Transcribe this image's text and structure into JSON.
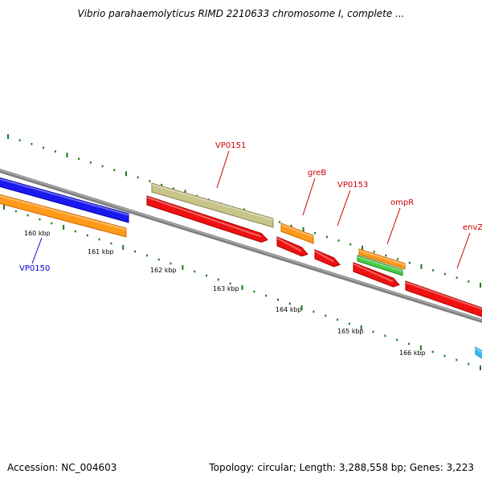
{
  "title": "Vibrio parahaemolyticus RIMD 2210633 chromosome I, complete ...",
  "footer": {
    "accession": "Accession: NC_004603",
    "summary": "Topology: circular; Length: 3,288,558 bp; Genes: 3,223"
  },
  "colors": {
    "backbone": "#808080",
    "tick": "#1a7a1a",
    "blue_label": "#0000cc",
    "red_label": "#cc0000"
  },
  "kbp_labels": [
    "160 kbp",
    "161 kbp",
    "162 kbp",
    "163 kbp",
    "164 kbp",
    "165 kbp",
    "166 kbp"
  ],
  "gene_labels": [
    {
      "text": "VP0150",
      "color": "#0000cc"
    },
    {
      "text": "VP0151",
      "color": "#cc0000"
    },
    {
      "text": "greB",
      "color": "#cc0000"
    },
    {
      "text": "VP0153",
      "color": "#cc0000"
    },
    {
      "text": "ompR",
      "color": "#cc0000"
    },
    {
      "text": "envZ",
      "color": "#cc0000"
    }
  ],
  "features": [
    {
      "name": "blue-cds",
      "fill": "#1a1aee",
      "dark": "#0000aa"
    },
    {
      "name": "orange-cds-1",
      "fill": "#ff9a1a",
      "dark": "#cc6600"
    },
    {
      "name": "khaki-feature",
      "fill": "#c8c48a",
      "dark": "#8a864e"
    },
    {
      "name": "red-cds-1",
      "fill": "#ee1111",
      "dark": "#aa0000"
    },
    {
      "name": "orange-cds-2",
      "fill": "#ff9a1a",
      "dark": "#cc6600"
    },
    {
      "name": "red-cds-2",
      "fill": "#ee1111",
      "dark": "#aa0000"
    },
    {
      "name": "red-cds-3",
      "fill": "#ee1111",
      "dark": "#aa0000"
    },
    {
      "name": "orange-cds-3",
      "fill": "#ff9a1a",
      "dark": "#cc6600"
    },
    {
      "name": "green-cds",
      "fill": "#44cc44",
      "dark": "#228822"
    },
    {
      "name": "red-cds-4",
      "fill": "#ee1111",
      "dark": "#aa0000"
    },
    {
      "name": "red-cds-5",
      "fill": "#ee1111",
      "dark": "#aa0000"
    },
    {
      "name": "cyan-cds",
      "fill": "#33bbee",
      "dark": "#1188bb"
    }
  ]
}
